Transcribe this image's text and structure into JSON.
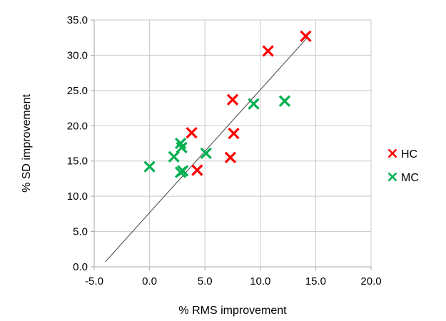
{
  "chart_data": {
    "type": "scatter",
    "title": "",
    "xlabel": "% RMS improvement",
    "ylabel": "% SD improvement",
    "xlim": [
      -5,
      20
    ],
    "ylim": [
      0,
      35
    ],
    "xticks": [
      -5,
      0,
      5,
      10,
      15,
      20
    ],
    "yticks": [
      0,
      5,
      10,
      15,
      20,
      25,
      30,
      35
    ],
    "xtick_labels": [
      "-5.0",
      "0.0",
      "5.0",
      "10.0",
      "15.0",
      "20.0"
    ],
    "ytick_labels": [
      "0.0",
      "5.0",
      "10.0",
      "15.0",
      "20.0",
      "25.0",
      "30.0",
      "35.0"
    ],
    "grid": true,
    "legend_position": "right",
    "series": [
      {
        "name": "HC",
        "color": "#ff0000",
        "marker": "x",
        "points": [
          {
            "x": 14.1,
            "y": 32.7
          },
          {
            "x": 10.7,
            "y": 30.6
          },
          {
            "x": 7.5,
            "y": 23.7
          },
          {
            "x": 3.8,
            "y": 19.0
          },
          {
            "x": 7.6,
            "y": 18.9
          },
          {
            "x": 7.3,
            "y": 15.5
          },
          {
            "x": 4.3,
            "y": 13.7
          }
        ]
      },
      {
        "name": "MC",
        "color": "#00b050",
        "marker": "x",
        "points": [
          {
            "x": 12.2,
            "y": 23.5
          },
          {
            "x": 9.4,
            "y": 23.1
          },
          {
            "x": 2.8,
            "y": 17.5
          },
          {
            "x": 2.9,
            "y": 16.9
          },
          {
            "x": 5.1,
            "y": 16.1
          },
          {
            "x": 2.2,
            "y": 15.6
          },
          {
            "x": 0.0,
            "y": 14.2
          },
          {
            "x": 2.8,
            "y": 13.4
          },
          {
            "x": 3.0,
            "y": 13.6
          }
        ]
      }
    ],
    "trendline": {
      "x": [
        -4.0,
        14.3
      ],
      "y": [
        0.7,
        32.6
      ],
      "color": "#404040"
    }
  }
}
